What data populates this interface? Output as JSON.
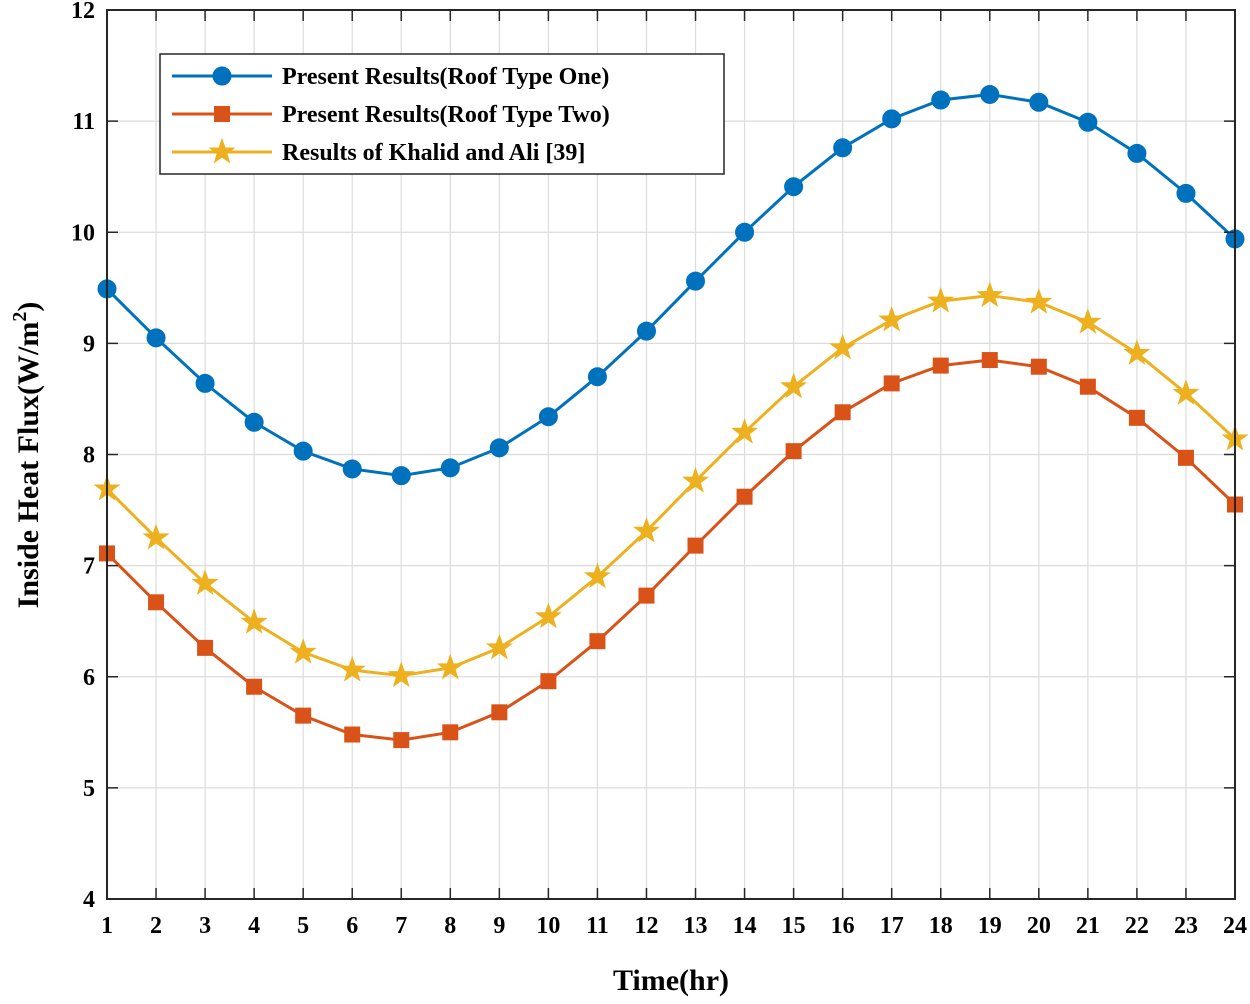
{
  "chart_data": {
    "type": "line",
    "title": "",
    "xlabel": "Time(hr)",
    "ylabel": "Inside Heat Flux(W/m",
    "ylabel_superscript": "2",
    "ylabel_suffix": ")",
    "xlim": [
      1,
      24
    ],
    "ylim": [
      4,
      12
    ],
    "grid": true,
    "legend_position": "top-left",
    "x": [
      1,
      2,
      3,
      4,
      5,
      6,
      7,
      8,
      9,
      10,
      11,
      12,
      13,
      14,
      15,
      16,
      17,
      18,
      19,
      20,
      21,
      22,
      23,
      24
    ],
    "x_tick_labels": [
      "1",
      "2",
      "3",
      "4",
      "5",
      "6",
      "7",
      "8",
      "9",
      "10",
      "11",
      "12",
      "13",
      "14",
      "15",
      "16",
      "17",
      "18",
      "19",
      "20",
      "21",
      "22",
      "23",
      "24"
    ],
    "y_ticks": [
      4,
      5,
      6,
      7,
      8,
      9,
      10,
      11,
      12
    ],
    "y_tick_labels": [
      "4",
      "5",
      "6",
      "7",
      "8",
      "9",
      "10",
      "11",
      "12"
    ],
    "series": [
      {
        "name": "Present Results(Roof Type One)",
        "color": "#0072BD",
        "marker": "circle",
        "values": [
          9.49,
          9.05,
          8.64,
          8.29,
          8.03,
          7.87,
          7.81,
          7.88,
          8.06,
          8.34,
          8.7,
          9.11,
          9.56,
          10.0,
          10.41,
          10.76,
          11.02,
          11.19,
          11.24,
          11.17,
          10.99,
          10.71,
          10.35,
          9.94
        ]
      },
      {
        "name": "Present Results(Roof Type Two)",
        "color": "#D95319",
        "marker": "square",
        "values": [
          7.11,
          6.67,
          6.26,
          5.91,
          5.65,
          5.48,
          5.43,
          5.5,
          5.68,
          5.96,
          6.32,
          6.73,
          7.18,
          7.62,
          8.03,
          8.38,
          8.64,
          8.8,
          8.85,
          8.79,
          8.61,
          8.33,
          7.97,
          7.55
        ]
      },
      {
        "name": "Results of Khalid and Ali [39]",
        "color": "#EDB120",
        "marker": "star",
        "values": [
          7.69,
          7.25,
          6.84,
          6.49,
          6.22,
          6.06,
          6.01,
          6.08,
          6.26,
          6.54,
          6.9,
          7.31,
          7.76,
          8.2,
          8.61,
          8.96,
          9.21,
          9.38,
          9.43,
          9.37,
          9.19,
          8.91,
          8.55,
          8.14
        ]
      }
    ]
  }
}
